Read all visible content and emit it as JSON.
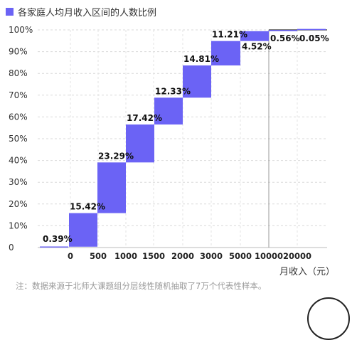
{
  "legend": {
    "label": "各家庭人均月收入区间的人数比例",
    "color": "#6b63f5"
  },
  "note": "注：数据来源于北师大课题组分层线性随机抽取了7万个代表性样本。",
  "chart_data": {
    "type": "bar",
    "subtype": "waterfall-cumulative",
    "title": "",
    "xlabel": "月收入（元）",
    "ylabel": "",
    "ylim": [
      0,
      100
    ],
    "y_ticks": [
      "0",
      "10%",
      "20%",
      "30%",
      "40%",
      "50%",
      "60%",
      "70%",
      "80%",
      "90%",
      "100%"
    ],
    "x_ticks": [
      "0",
      "500",
      "1000",
      "1500",
      "2000",
      "3000",
      "5000",
      "10000",
      "20000"
    ],
    "grid": true,
    "series": [
      {
        "name": "各家庭人均月收入区间的人数比例",
        "values": [
          0.39,
          15.42,
          23.29,
          17.42,
          12.33,
          14.81,
          11.21,
          4.52,
          0.56,
          0.05
        ],
        "labels": [
          "0.39%",
          "15.42%",
          "23.29%",
          "17.42%",
          "12.33%",
          "14.81%",
          "11.21%",
          "4.52%",
          "0.56%",
          "0.05%"
        ]
      }
    ]
  }
}
